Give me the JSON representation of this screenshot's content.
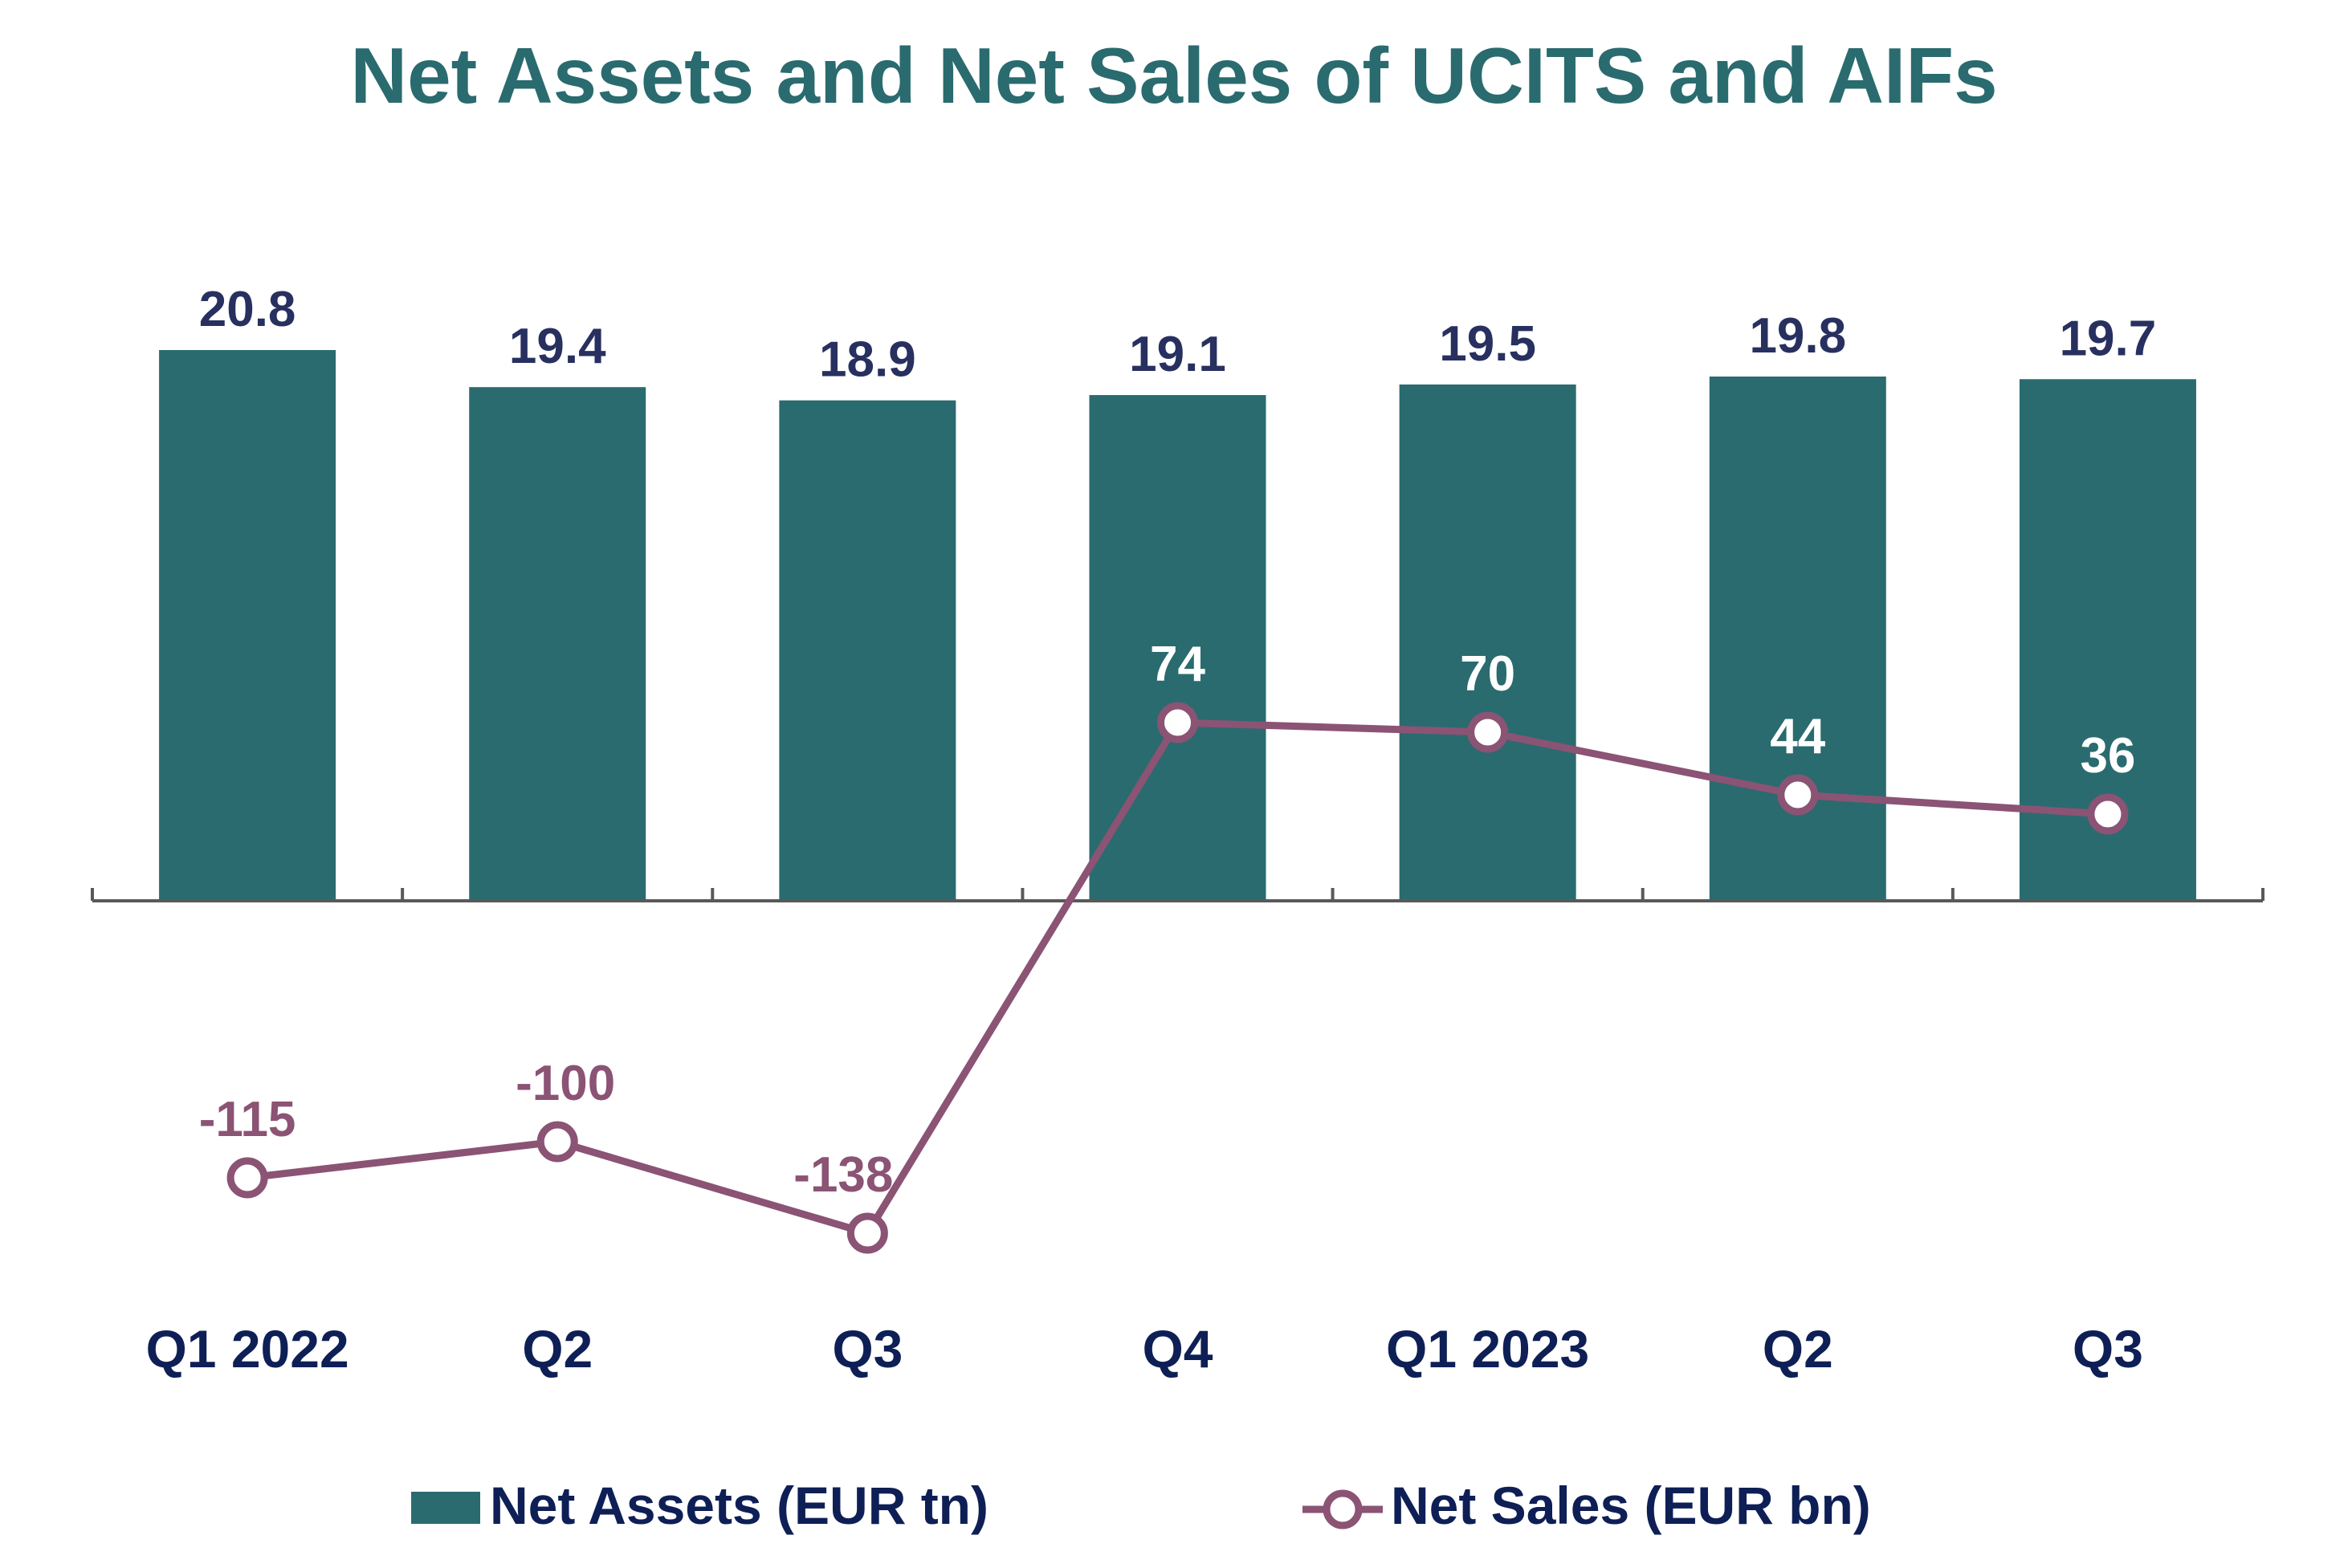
{
  "chart_data": {
    "type": "bar",
    "title": "Net Assets and Net Sales of UCITS and AIFs",
    "categories": [
      "Q1 2022",
      "Q2",
      "Q3",
      "Q4",
      "Q1 2023",
      "Q2",
      "Q3"
    ],
    "series": [
      {
        "name": "Net Assets (EUR tn)",
        "type": "bar",
        "axis": "left",
        "values": [
          20.8,
          19.4,
          18.9,
          19.1,
          19.5,
          19.8,
          19.7
        ],
        "labels": [
          "20.8",
          "19.4",
          "18.9",
          "19.1",
          "19.5",
          "19.8",
          "19.7"
        ],
        "color": "#2a6b6f",
        "label_color": "#27305f"
      },
      {
        "name": "Net Sales (EUR bn)",
        "type": "line",
        "axis": "right",
        "values": [
          -115,
          -100,
          -138,
          74,
          70,
          44,
          36
        ],
        "labels": [
          "-115",
          "-100",
          "-138",
          "74",
          "70",
          "44",
          "36"
        ],
        "color": "#8b5374",
        "positive_label_color": "#ffffff",
        "negative_label_color": "#8b5374"
      }
    ],
    "left_ylim": [
      0,
      20.8
    ],
    "right_ylim": [
      -200,
      150
    ],
    "xlabel": "",
    "ylabel": "",
    "legend": "bottom",
    "grid": false,
    "colors": {
      "title": "#2a6b6f",
      "axis": "#595959",
      "category_label": "#0e1f56",
      "legend_text": "#0e1f56"
    }
  }
}
